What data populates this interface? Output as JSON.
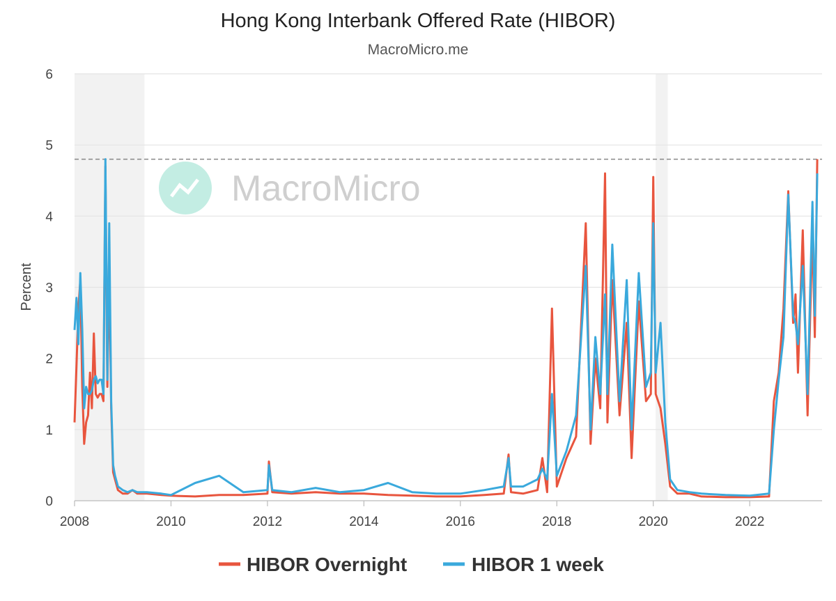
{
  "chart_data": {
    "type": "line",
    "title": "Hong Kong Interbank Offered Rate (HIBOR)",
    "subtitle": "MacroMicro.me",
    "ylabel": "Percent",
    "ylim": [
      0,
      6
    ],
    "xlim": [
      2008.0,
      2023.5
    ],
    "yticks": [
      "0",
      "1",
      "2",
      "3",
      "4",
      "5",
      "6"
    ],
    "xticks": [
      "2008",
      "2010",
      "2012",
      "2014",
      "2016",
      "2018",
      "2020",
      "2022"
    ],
    "reference_line": 4.8,
    "recession_shading": [
      [
        2008.0,
        2009.45
      ],
      [
        2020.05,
        2020.3
      ]
    ],
    "grid": "horizontal",
    "legend": "bottom",
    "watermark": "MacroMicro",
    "colors": {
      "overnight": "#e8553e",
      "one_week": "#3aa9dc",
      "grid": "#e4e4e4",
      "shade": "#f2f2f2",
      "watermark_icon": "#c3ede3"
    },
    "series": [
      {
        "name": "HIBOR Overnight",
        "x": [
          2008.0,
          2008.04,
          2008.08,
          2008.12,
          2008.16,
          2008.2,
          2008.24,
          2008.28,
          2008.32,
          2008.36,
          2008.4,
          2008.44,
          2008.48,
          2008.52,
          2008.56,
          2008.6,
          2008.64,
          2008.68,
          2008.72,
          2008.76,
          2008.8,
          2008.84,
          2008.9,
          2009.0,
          2009.1,
          2009.2,
          2009.3,
          2009.5,
          2009.8,
          2010.0,
          2010.5,
          2011.0,
          2011.5,
          2012.0,
          2012.03,
          2012.1,
          2012.5,
          2013.0,
          2013.5,
          2014.0,
          2014.5,
          2015.0,
          2015.5,
          2016.0,
          2016.5,
          2016.9,
          2017.0,
          2017.05,
          2017.3,
          2017.6,
          2017.7,
          2017.8,
          2017.9,
          2018.0,
          2018.2,
          2018.4,
          2018.6,
          2018.7,
          2018.8,
          2018.9,
          2019.0,
          2019.05,
          2019.15,
          2019.3,
          2019.45,
          2019.55,
          2019.7,
          2019.85,
          2019.95,
          2020.0,
          2020.05,
          2020.15,
          2020.25,
          2020.35,
          2020.5,
          2020.75,
          2021.0,
          2021.5,
          2022.0,
          2022.4,
          2022.5,
          2022.6,
          2022.7,
          2022.8,
          2022.9,
          2022.95,
          2023.0,
          2023.1,
          2023.2,
          2023.3,
          2023.35,
          2023.4
        ],
        "values": [
          1.1,
          1.9,
          2.7,
          3.1,
          1.6,
          0.8,
          1.1,
          1.2,
          1.8,
          1.3,
          2.35,
          1.5,
          1.45,
          1.5,
          1.5,
          1.4,
          4.7,
          1.6,
          3.3,
          1.3,
          0.4,
          0.3,
          0.15,
          0.1,
          0.1,
          0.15,
          0.1,
          0.1,
          0.08,
          0.07,
          0.06,
          0.08,
          0.08,
          0.1,
          0.55,
          0.12,
          0.1,
          0.12,
          0.1,
          0.1,
          0.08,
          0.07,
          0.06,
          0.06,
          0.08,
          0.1,
          0.65,
          0.12,
          0.1,
          0.15,
          0.6,
          0.12,
          2.7,
          0.2,
          0.6,
          0.9,
          3.9,
          0.8,
          2.0,
          1.3,
          4.6,
          1.1,
          3.1,
          1.2,
          2.5,
          0.6,
          2.8,
          1.4,
          1.5,
          4.55,
          1.5,
          1.3,
          0.8,
          0.2,
          0.1,
          0.1,
          0.06,
          0.05,
          0.05,
          0.06,
          1.4,
          1.8,
          2.7,
          4.35,
          2.5,
          2.9,
          1.8,
          3.8,
          1.2,
          3.8,
          2.3,
          4.8
        ]
      },
      {
        "name": "HIBOR 1 week",
        "x": [
          2008.0,
          2008.04,
          2008.08,
          2008.12,
          2008.16,
          2008.2,
          2008.24,
          2008.28,
          2008.32,
          2008.36,
          2008.4,
          2008.44,
          2008.48,
          2008.52,
          2008.56,
          2008.6,
          2008.64,
          2008.68,
          2008.72,
          2008.76,
          2008.8,
          2008.84,
          2008.9,
          2009.0,
          2009.1,
          2009.2,
          2009.3,
          2009.5,
          2009.8,
          2010.0,
          2010.5,
          2011.0,
          2011.5,
          2012.0,
          2012.03,
          2012.1,
          2012.5,
          2013.0,
          2013.5,
          2014.0,
          2014.5,
          2015.0,
          2015.5,
          2016.0,
          2016.5,
          2016.9,
          2017.0,
          2017.05,
          2017.3,
          2017.6,
          2017.7,
          2017.8,
          2017.9,
          2018.0,
          2018.2,
          2018.4,
          2018.6,
          2018.7,
          2018.8,
          2018.9,
          2019.0,
          2019.05,
          2019.15,
          2019.3,
          2019.45,
          2019.55,
          2019.7,
          2019.85,
          2019.95,
          2020.0,
          2020.05,
          2020.15,
          2020.25,
          2020.35,
          2020.5,
          2020.75,
          2021.0,
          2021.5,
          2022.0,
          2022.4,
          2022.5,
          2022.6,
          2022.7,
          2022.8,
          2022.9,
          2022.95,
          2023.0,
          2023.1,
          2023.2,
          2023.3,
          2023.35,
          2023.4
        ],
        "values": [
          2.4,
          2.85,
          2.2,
          3.2,
          2.4,
          1.3,
          1.6,
          1.5,
          1.5,
          1.55,
          1.7,
          1.75,
          1.65,
          1.7,
          1.7,
          1.5,
          4.8,
          1.7,
          3.9,
          1.4,
          0.5,
          0.35,
          0.2,
          0.15,
          0.12,
          0.15,
          0.12,
          0.12,
          0.1,
          0.08,
          0.25,
          0.35,
          0.12,
          0.15,
          0.5,
          0.15,
          0.12,
          0.18,
          0.12,
          0.15,
          0.25,
          0.12,
          0.1,
          0.1,
          0.15,
          0.2,
          0.6,
          0.2,
          0.2,
          0.3,
          0.45,
          0.3,
          1.5,
          0.35,
          0.7,
          1.2,
          3.3,
          1.0,
          2.3,
          1.5,
          2.9,
          1.5,
          3.6,
          1.4,
          3.1,
          1.0,
          3.2,
          1.6,
          1.8,
          3.9,
          1.8,
          2.5,
          1.1,
          0.3,
          0.15,
          0.12,
          0.1,
          0.08,
          0.07,
          0.1,
          1.0,
          1.7,
          2.3,
          4.3,
          2.6,
          2.5,
          2.2,
          3.3,
          1.5,
          4.2,
          2.6,
          4.6
        ]
      }
    ]
  }
}
